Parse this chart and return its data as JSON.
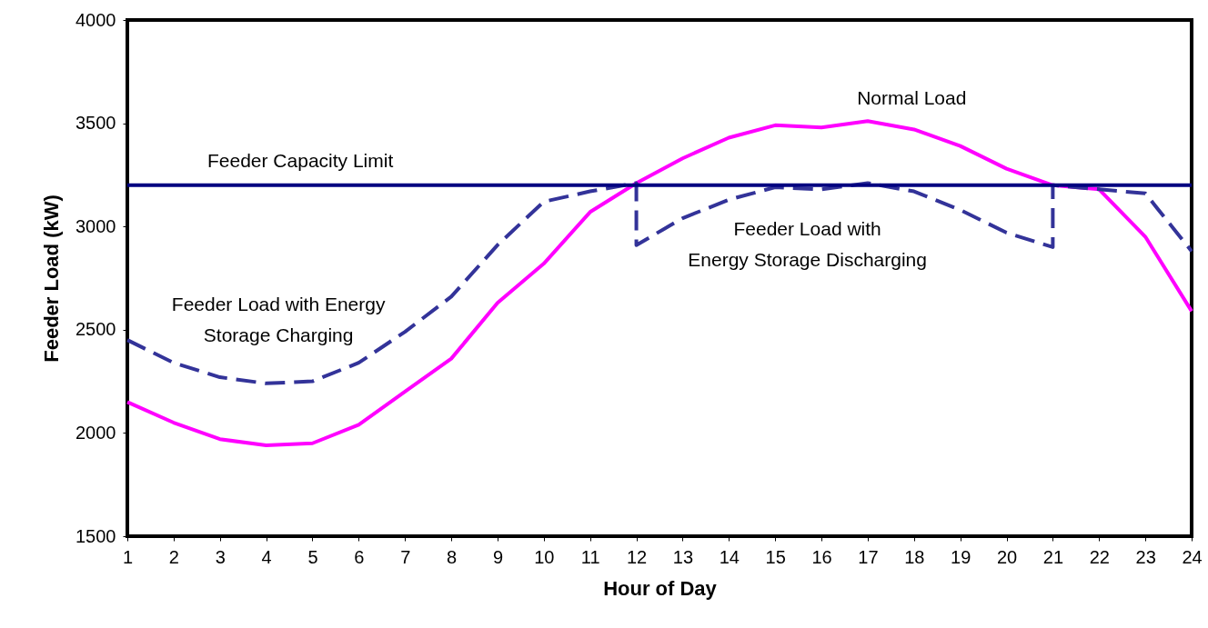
{
  "chart_data": {
    "type": "line",
    "xlabel": "Hour of Day",
    "ylabel": "Feeder Load (kW)",
    "xlim": [
      1,
      24
    ],
    "xticks": [
      1,
      2,
      3,
      4,
      5,
      6,
      7,
      8,
      9,
      10,
      11,
      12,
      13,
      14,
      15,
      16,
      17,
      18,
      19,
      20,
      21,
      22,
      23,
      24
    ],
    "ylim": [
      1500,
      4000
    ],
    "yticks": [
      1500,
      2000,
      2500,
      3000,
      3500,
      4000
    ],
    "grid": false,
    "marker": "none",
    "series": [
      {
        "color": "#ff00ff",
        "line_style": "solid",
        "x": [
          1,
          2,
          3,
          4,
          5,
          6,
          7,
          8,
          9,
          10,
          11,
          12,
          13,
          14,
          15,
          16,
          17,
          18,
          19,
          20,
          21,
          22,
          23,
          24
        ],
        "values": [
          2150,
          2050,
          1970,
          1940,
          1950,
          2040,
          2200,
          2360,
          2630,
          2820,
          3070,
          3210,
          3330,
          3430,
          3490,
          3480,
          3510,
          3470,
          3390,
          3280,
          3200,
          3180,
          2950,
          2590
        ]
      },
      {
        "color": "#333399",
        "line_style": "dashed",
        "x": [
          1,
          2,
          3,
          4,
          5,
          6,
          7,
          8,
          9,
          10,
          11,
          12,
          12,
          13,
          14,
          15,
          16,
          17,
          18,
          19,
          20,
          21,
          21,
          22,
          23,
          24
        ],
        "values": [
          2450,
          2340,
          2270,
          2240,
          2250,
          2340,
          2490,
          2660,
          2910,
          3120,
          3170,
          3210,
          2910,
          3040,
          3130,
          3190,
          3180,
          3210,
          3170,
          3080,
          2970,
          2900,
          3200,
          3180,
          3160,
          2880
        ]
      }
    ],
    "ref_lines": [
      {
        "axis": "y",
        "value": 3200,
        "label": "Feeder Capacity Limit",
        "color": "#000080"
      }
    ],
    "annotations": [
      "Normal Load",
      "Feeder Load with Energy\nStorage Charging",
      "Feeder Load with\nEnergy Storage Discharging"
    ]
  }
}
